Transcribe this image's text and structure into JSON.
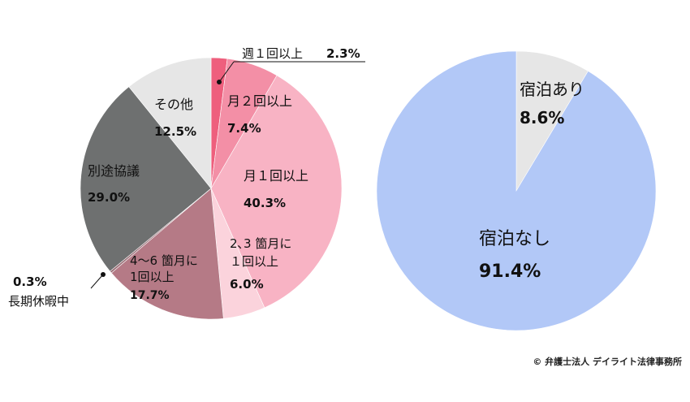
{
  "chart_data": [
    {
      "type": "pie",
      "slices": [
        {
          "label": "週１回以上",
          "value": 2.3,
          "value_label": "2.3%",
          "color": "#ee5f7d"
        },
        {
          "label": "月２回以上",
          "value": 7.4,
          "value_label": "7.4%",
          "color": "#f38fa6"
        },
        {
          "label": "月１回以上",
          "value": 40.3,
          "value_label": "40.3%",
          "color": "#f8b3c4"
        },
        {
          "label": "2､3 箇月に１回以上",
          "value": 6.0,
          "value_label": "6.0%",
          "color": "#fbd3dc"
        },
        {
          "label": "4〜6 箇月に１回以上",
          "value": 17.7,
          "value_label": "17.7%",
          "color": "#b57a86"
        },
        {
          "label": "長期休暇中",
          "value": 0.3,
          "value_label": "0.3%",
          "color": "#9a6f77"
        },
        {
          "label": "別途協議",
          "value": 29.0,
          "value_label": "29.0%",
          "color": "#6e7070"
        },
        {
          "label": "その他",
          "value": 12.5,
          "value_label": "12.5%",
          "color": "#e6e6e6"
        }
      ]
    },
    {
      "type": "pie",
      "slices": [
        {
          "label": "宿泊あり",
          "value": 8.6,
          "value_label": "8.6%",
          "color": "#e6e6e6"
        },
        {
          "label": "宿泊なし",
          "value": 91.4,
          "value_label": "91.4%",
          "color": "#b2c8f7"
        }
      ]
    }
  ],
  "labels": {
    "weekly": "週１回以上",
    "weekly_val": "2.3%",
    "m2": "月２回以上",
    "m2_val": "7.4%",
    "m1": "月１回以上",
    "m1_val": "40.3%",
    "q23_line1": "2､3 箇月に",
    "q23_line2": "１回以上",
    "q23_val": "6.0%",
    "q46_line1": "4〜6 箇月に",
    "q46_line2": "1回以上",
    "q46_val": "17.7%",
    "vac_val": "0.3%",
    "vac": "長期休暇中",
    "sep": "別途協議",
    "sep_val": "29.0%",
    "other": "その他",
    "other_val": "12.5%",
    "stay_yes": "宿泊あり",
    "stay_yes_val": "8.6%",
    "stay_no": "宿泊なし",
    "stay_no_val": "91.4%"
  },
  "copyright": "© 弁護士法人 デイライト法律事務所"
}
